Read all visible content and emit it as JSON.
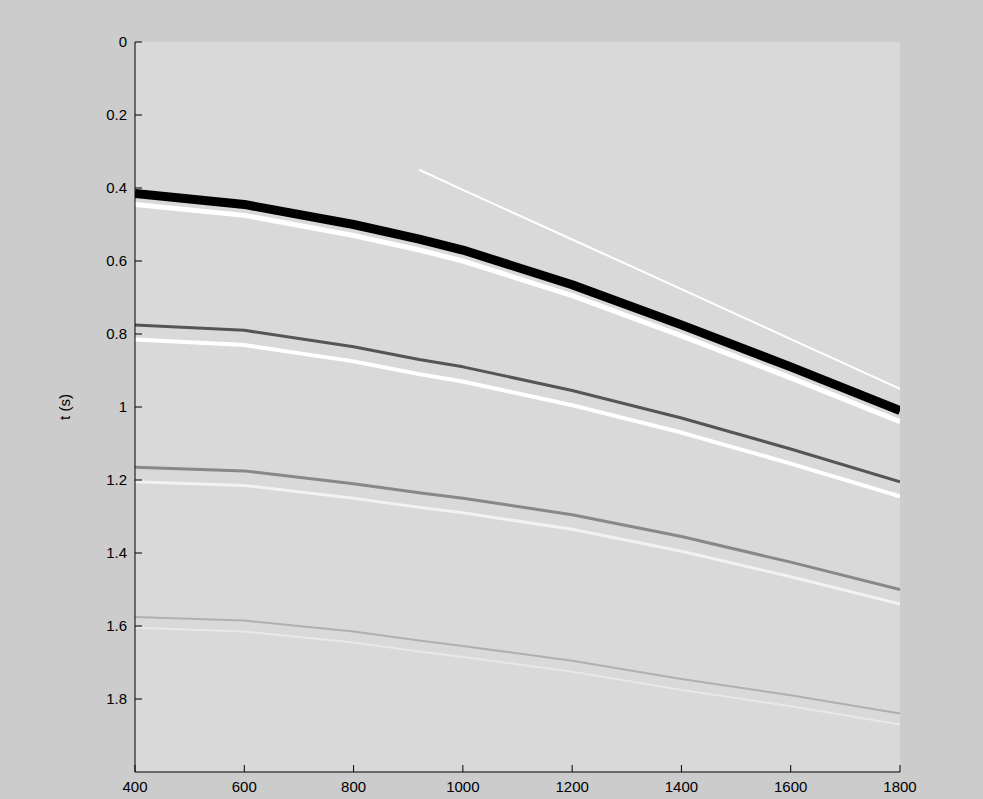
{
  "chart_data": {
    "type": "line",
    "y_label": "t (s)",
    "x": [
      400,
      600,
      800,
      920,
      1000,
      1200,
      1400,
      1600,
      1800
    ],
    "series": [
      {
        "color": "#000000",
        "line_style": "solid",
        "values": [
          0.415,
          0.445,
          0.5,
          0.54,
          0.57,
          0.665,
          0.775,
          0.89,
          1.01
        ]
      },
      {
        "color": "#ffffff",
        "line_style": "solid",
        "values": [
          0.445,
          0.475,
          0.53,
          0.57,
          0.6,
          0.695,
          0.805,
          0.92,
          1.04
        ]
      },
      {
        "color": "#ffffff",
        "line_style": "solid",
        "values": [
          null,
          null,
          null,
          0.35,
          0.405,
          0.541,
          0.677,
          0.814,
          0.95
        ]
      },
      {
        "color": "#555555",
        "line_style": "solid",
        "values": [
          0.775,
          0.79,
          0.835,
          0.87,
          0.89,
          0.955,
          1.03,
          1.115,
          1.205
        ]
      },
      {
        "color": "#ffffff",
        "line_style": "solid",
        "values": [
          0.815,
          0.83,
          0.875,
          0.91,
          0.93,
          0.995,
          1.07,
          1.155,
          1.245
        ]
      },
      {
        "color": "#888888",
        "line_style": "solid",
        "values": [
          1.165,
          1.175,
          1.21,
          1.235,
          1.25,
          1.295,
          1.355,
          1.425,
          1.5
        ]
      },
      {
        "color": "#f2f2f2",
        "line_style": "solid",
        "values": [
          1.205,
          1.215,
          1.25,
          1.275,
          1.29,
          1.335,
          1.395,
          1.465,
          1.54
        ]
      },
      {
        "color": "#b0b0b0",
        "line_style": "solid",
        "values": [
          1.575,
          1.585,
          1.615,
          1.64,
          1.655,
          1.695,
          1.745,
          1.79,
          1.84
        ]
      },
      {
        "color": "#e8e8e8",
        "line_style": "solid",
        "values": [
          1.605,
          1.615,
          1.645,
          1.67,
          1.685,
          1.725,
          1.775,
          1.82,
          1.87
        ]
      }
    ],
    "xlim": [
      400,
      1800
    ],
    "ylim": [
      0,
      2
    ],
    "xticks": [
      400,
      600,
      800,
      1000,
      1200,
      1400,
      1600,
      1800
    ],
    "yticks": [
      0,
      0.2,
      0.4,
      0.6,
      0.8,
      1,
      1.2,
      1.4,
      1.6,
      1.8
    ],
    "grid": false
  }
}
